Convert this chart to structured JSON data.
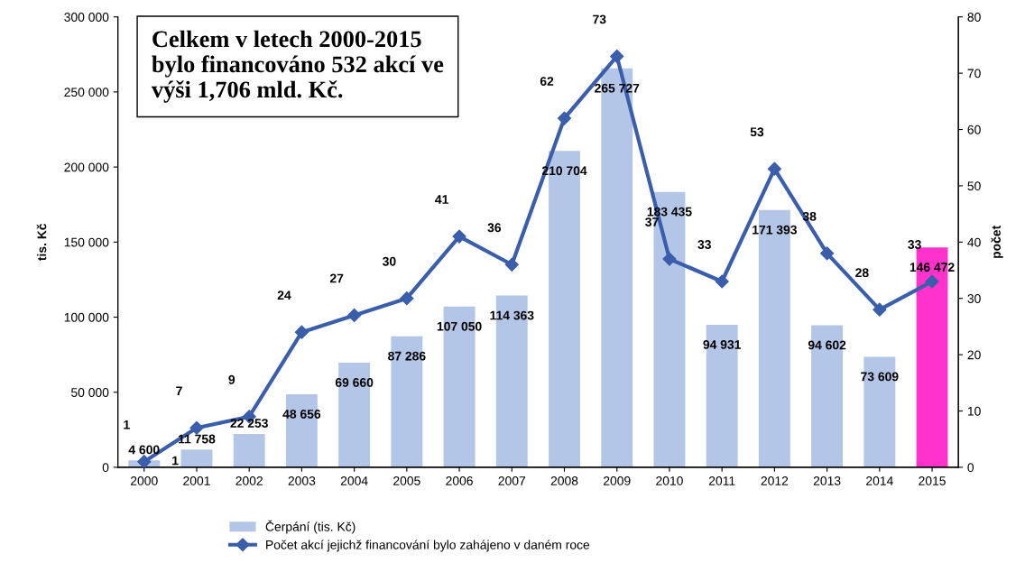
{
  "chart_data": {
    "type": "bar",
    "categories": [
      "2000",
      "2001",
      "2002",
      "2003",
      "2004",
      "2005",
      "2006",
      "2007",
      "2008",
      "2009",
      "2010",
      "2011",
      "2012",
      "2013",
      "2014",
      "2015"
    ],
    "ylabel": "tis. Kč",
    "y2label": "počet",
    "ylim": [
      0,
      300000
    ],
    "yticks": [
      {
        "value": 0,
        "label": "0"
      },
      {
        "value": 50000,
        "label": "50 000"
      },
      {
        "value": 100000,
        "label": "100 000"
      },
      {
        "value": 150000,
        "label": "150 000"
      },
      {
        "value": 200000,
        "label": "200 000"
      },
      {
        "value": 250000,
        "label": "250 000"
      },
      {
        "value": 300000,
        "label": "300 000"
      }
    ],
    "y2lim": [
      0,
      80
    ],
    "y2ticks": [
      0,
      10,
      20,
      30,
      40,
      50,
      60,
      70,
      80
    ],
    "series": [
      {
        "name": "Čerpání (tis. Kč)",
        "color": "#b4c6e7",
        "colors": [
          "#b4c6e7",
          "#b4c6e7",
          "#b4c6e7",
          "#b4c6e7",
          "#b4c6e7",
          "#b4c6e7",
          "#b4c6e7",
          "#b4c6e7",
          "#b4c6e7",
          "#b4c6e7",
          "#b4c6e7",
          "#b4c6e7",
          "#b4c6e7",
          "#b4c6e7",
          "#b4c6e7",
          "#ff33cc"
        ],
        "values": [
          4600,
          11758,
          22253,
          48656,
          69660,
          87286,
          107050,
          114363,
          210704,
          265727,
          183435,
          94931,
          171393,
          94602,
          73609,
          146472
        ],
        "value_labels": [
          "4 600",
          "11 758",
          "22 253",
          "48 656",
          "69 660",
          "87 286",
          "107 050",
          "114 363",
          "210 704",
          "265 727",
          "183 435",
          "94 931",
          "171 393",
          "94 602",
          "73 609",
          "146 472"
        ]
      },
      {
        "name": "Počet akcí jejichž financování bylo zahájeno v daném roce",
        "type": "line",
        "axis": "y2",
        "color": "#3a5eab",
        "marker": "diamond",
        "values": [
          1,
          7,
          9,
          24,
          27,
          30,
          41,
          36,
          62,
          73,
          37,
          33,
          53,
          38,
          28,
          33
        ],
        "value_labels": [
          "1",
          "7",
          "9",
          "24",
          "27",
          "30",
          "41",
          "36",
          "62",
          "73",
          "37",
          "33",
          "53",
          "38",
          "28",
          "33"
        ]
      }
    ],
    "annotations": [
      "Celkem v letech 2000-2015\nbylo financováno 532 akcí ve\nvýši 1,706 mld. Kč.",
      {
        "text": "1",
        "x": "2000",
        "y": 1
      }
    ],
    "legend": "bottom",
    "grid": false
  }
}
